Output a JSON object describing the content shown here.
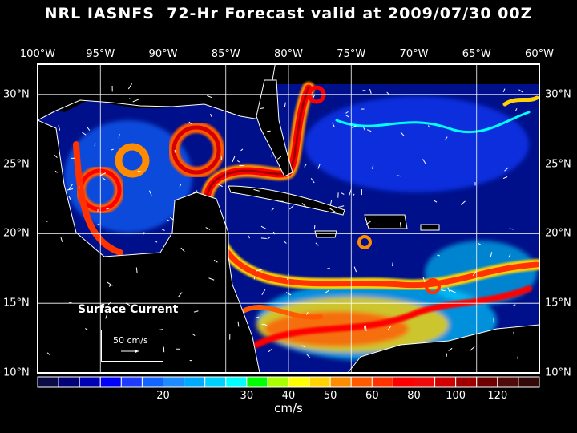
{
  "title": "NRL IASNFS  72-Hr Forecast valid at 2009/07/30 00Z",
  "lon_labels": [
    "100°W",
    "95°W",
    "90°W",
    "85°W",
    "80°W",
    "75°W",
    "70°W",
    "65°W",
    "60°W"
  ],
  "lat_labels": [
    "30°N",
    "25°N",
    "20°N",
    "15°N",
    "10°N"
  ],
  "map": {
    "lon_range": [
      -100,
      -60
    ],
    "lat_range": [
      10,
      32.2
    ],
    "grid_step_deg": 5
  },
  "legend": {
    "title": "Surface Current",
    "ref_vector": "50 cm/s"
  },
  "colorbar": {
    "unit": "cm/s",
    "ticks": [
      {
        "label": "20",
        "box": 6
      },
      {
        "label": "30",
        "box": 10
      },
      {
        "label": "40",
        "box": 12
      },
      {
        "label": "50",
        "box": 14
      },
      {
        "label": "60",
        "box": 16
      },
      {
        "label": "80",
        "box": 18
      },
      {
        "label": "100",
        "box": 20
      },
      {
        "label": "120",
        "box": 22
      }
    ],
    "colors": [
      "#0a0a45",
      "#000078",
      "#0000b4",
      "#0000ff",
      "#1e3cff",
      "#1464ff",
      "#1e8cff",
      "#00aaff",
      "#00d2ff",
      "#00ffff",
      "#00ff00",
      "#aaff00",
      "#ffff00",
      "#ffd200",
      "#ff8c00",
      "#ff5a00",
      "#ff3200",
      "#ff0000",
      "#f00a0a",
      "#d20000",
      "#a00000",
      "#700000",
      "#500a0a",
      "#320808"
    ]
  }
}
